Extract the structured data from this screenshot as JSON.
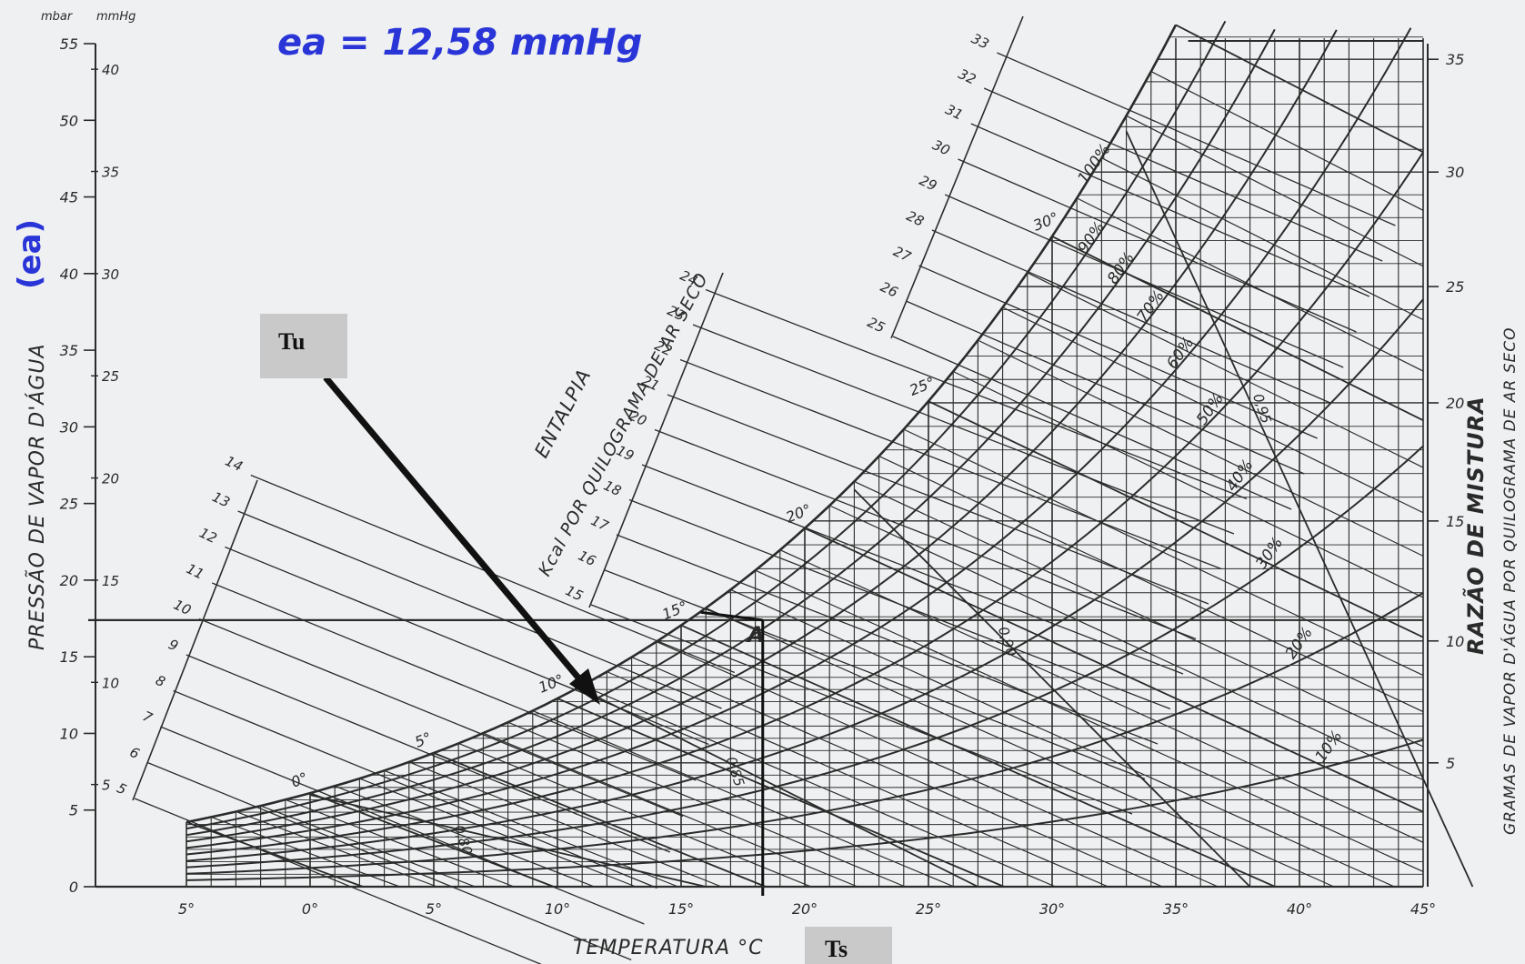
{
  "chart_data": {
    "type": "psychrometric",
    "units": {
      "left_outer": "mbar",
      "left_inner": "mmHg"
    },
    "left_axis_title": "PRESSÃO DE VAPOR D'ÁGUA",
    "left_axis_annotation": "(ea)",
    "right_axis_title": "RAZÃO DE MISTURA",
    "right_axis_subtitle": "GRAMAS DE VAPOR D'ÁGUA POR QUILOGRAMA DE AR SECO",
    "x_axis_title": "TEMPERATURA °C",
    "enthalpy_title": "ENTALPIA",
    "enthalpy_subtitle": "Kcal POR QUILOGRAMA DE AR SECO",
    "x_ticks": [
      "5°",
      "0°",
      "5°",
      "10°",
      "15°",
      "20°",
      "25°",
      "30°",
      "35°",
      "40°",
      "45°"
    ],
    "x_tick_values": [
      -5,
      0,
      5,
      10,
      15,
      20,
      25,
      30,
      35,
      40,
      45
    ],
    "mbar_ticks": [
      "0",
      "5",
      "10",
      "15",
      "20",
      "25",
      "30",
      "35",
      "40",
      "45",
      "50",
      "55"
    ],
    "mbar_values": [
      0,
      5,
      10,
      15,
      20,
      25,
      30,
      35,
      40,
      45,
      50,
      55
    ],
    "mmhg_ticks": [
      "5",
      "10",
      "15",
      "20",
      "25",
      "30",
      "35",
      "40"
    ],
    "mmhg_values": [
      5,
      10,
      15,
      20,
      25,
      30,
      35,
      40
    ],
    "mixing_ratio_ticks": [
      "5",
      "10",
      "15",
      "20",
      "25",
      "30",
      "35"
    ],
    "mixing_ratio_values": [
      5,
      10,
      15,
      20,
      25,
      30,
      35
    ],
    "enthalpy_low": [
      "5",
      "6",
      "7",
      "8",
      "9",
      "10",
      "11",
      "12",
      "13",
      "14"
    ],
    "enthalpy_mid": [
      "15",
      "16",
      "17",
      "18",
      "19",
      "20",
      "21",
      "22",
      "23",
      "24"
    ],
    "enthalpy_high": [
      "25",
      "26",
      "27",
      "28",
      "29",
      "30",
      "31",
      "32",
      "33"
    ],
    "rh_labels": [
      "100%",
      "90%",
      "80%",
      "70%",
      "60%",
      "50%",
      "40%",
      "30%",
      "20%",
      "10%"
    ],
    "rh_values": [
      100,
      90,
      80,
      70,
      60,
      50,
      40,
      30,
      20,
      10
    ],
    "wet_bulb_labels": [
      "0°",
      "5°",
      "10°",
      "15°",
      "20°",
      "25°",
      "30°"
    ],
    "specific_volume_labels": [
      "0,80",
      "0,85",
      "0,90",
      "0,95"
    ],
    "point_label": "A",
    "point_A": {
      "t": 18.3,
      "ea_mmhg": 12.58,
      "ea_mbar": 16.8
    },
    "wet_bulb_point": {
      "t": 15.8,
      "ea_mbar": 17.9
    },
    "handwritten_note": "ea = 12,58 mmHg",
    "tu_label": "Tu",
    "ts_label": "Ts"
  }
}
